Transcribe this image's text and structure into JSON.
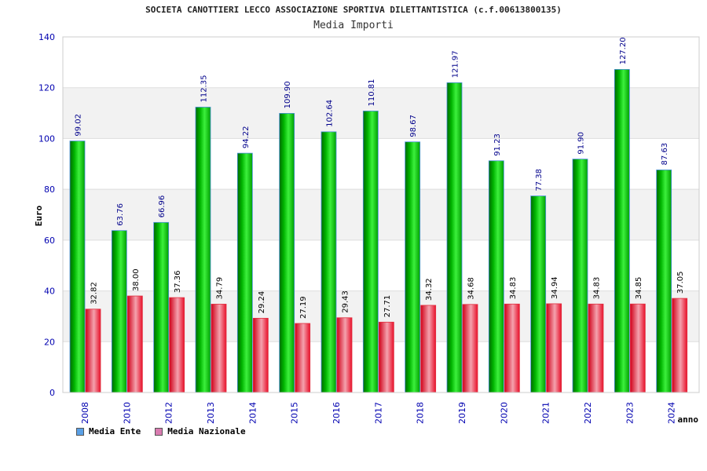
{
  "header": {
    "title": "SOCIETA CANOTTIERI LECCO ASSOCIAZIONE SPORTIVA DILETTANTISTICA (c.f.00613800135)",
    "subtitle": "Media Importi"
  },
  "legend": {
    "items": [
      {
        "label": "Media Ente",
        "color": "#5aa0e6"
      },
      {
        "label": "Media Nazionale",
        "color": "#d97bb0"
      }
    ]
  },
  "chart_data": {
    "type": "bar",
    "title": "Media Importi",
    "xlabel": "anno",
    "ylabel": "Euro",
    "ylim": [
      0,
      140
    ],
    "yticks": [
      0,
      20,
      40,
      60,
      80,
      100,
      120,
      140
    ],
    "grid": true,
    "legend_position": "bottom-left",
    "categories": [
      "2008",
      "2010",
      "2012",
      "2013",
      "2014",
      "2015",
      "2016",
      "2017",
      "2018",
      "2019",
      "2020",
      "2021",
      "2022",
      "2023",
      "2024"
    ],
    "series": [
      {
        "name": "Media Ente",
        "color": "#00b000",
        "values": [
          99.02,
          63.76,
          66.96,
          112.35,
          94.22,
          109.9,
          102.64,
          110.81,
          98.67,
          121.97,
          91.23,
          77.38,
          91.9,
          127.2,
          87.63
        ],
        "labels": [
          "99.02",
          "63.76",
          "66.96",
          "112.35",
          "94.22",
          "109.90",
          "102.64",
          "110.81",
          "98.67",
          "121.97",
          "91.23",
          "77.38",
          "91.90",
          "127.20",
          "87.63"
        ]
      },
      {
        "name": "Media Nazionale",
        "color": "#e8102a",
        "values": [
          32.82,
          38.0,
          37.36,
          34.79,
          29.24,
          27.19,
          29.43,
          27.71,
          34.32,
          34.68,
          34.83,
          34.94,
          34.83,
          34.85,
          37.05
        ],
        "labels": [
          "32.82",
          "38.00",
          "37.36",
          "34.79",
          "29.24",
          "27.19",
          "29.43",
          "27.71",
          "34.32",
          "34.68",
          "34.83",
          "34.94",
          "34.83",
          "34.85",
          "37.05"
        ]
      }
    ]
  }
}
